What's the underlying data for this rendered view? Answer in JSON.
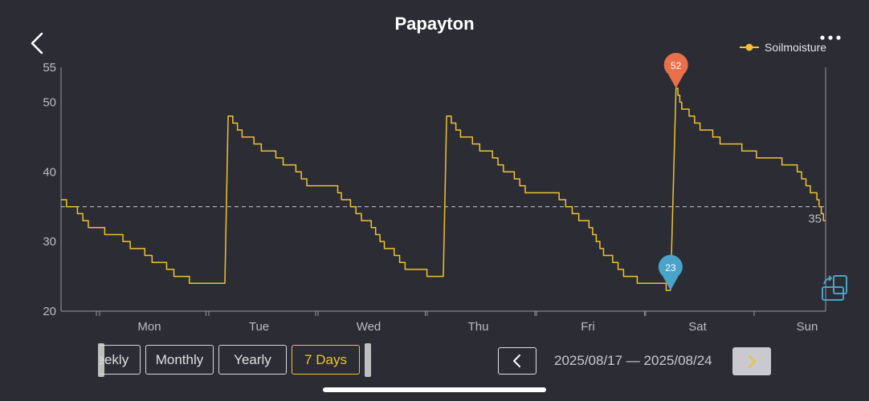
{
  "header": {
    "title": "Papayton",
    "back_icon": "chevron-left-icon",
    "more_icon": "more-dots-icon"
  },
  "legend": {
    "label": "Soilmoisture",
    "color": "#f1c232"
  },
  "chart_data": {
    "type": "line",
    "title": "",
    "xlabel": "",
    "ylabel": "",
    "ylim": [
      20,
      55
    ],
    "yticks": [
      20,
      30,
      40,
      50,
      55
    ],
    "xticks": [
      "Mon",
      "Tue",
      "Wed",
      "Thu",
      "Fri",
      "Sat",
      "Sun"
    ],
    "x_range_days": [
      0,
      7
    ],
    "threshold": 35,
    "threshold_label": "35",
    "grid": false,
    "series": [
      {
        "name": "Soilmoisture",
        "color": "#f1c232",
        "x": [
          0,
          0.1,
          0.3,
          0.5,
          0.7,
          0.9,
          1.1,
          1.25,
          1.5,
          1.53,
          1.7,
          1.9,
          2.1,
          2.3,
          2.5,
          2.6,
          2.8,
          3.0,
          3.2,
          3.5,
          3.53,
          3.7,
          3.9,
          4.1,
          4.3,
          4.5,
          4.8,
          5.0,
          5.2,
          5.35,
          5.5,
          5.58,
          5.63,
          5.7,
          5.9,
          6.1,
          6.5,
          6.7,
          6.9,
          7.0
        ],
        "y": [
          36,
          35,
          32,
          31,
          29,
          27,
          25,
          24,
          24,
          48,
          45,
          43,
          41,
          38,
          38,
          36,
          33,
          29,
          26,
          25,
          48,
          45,
          43,
          40,
          37,
          37,
          33,
          28,
          25,
          24,
          24,
          23,
          52,
          49,
          46,
          44,
          42,
          41,
          37,
          33
        ]
      }
    ],
    "annotations": [
      {
        "type": "max",
        "label": "52",
        "x": 5.63,
        "y": 52,
        "color": "#e8704a"
      },
      {
        "type": "min",
        "label": "23",
        "x": 5.58,
        "y": 23,
        "color": "#4aa3c8"
      }
    ]
  },
  "tabs": {
    "items": [
      {
        "label": "Weekly",
        "active": false
      },
      {
        "label": "Monthly",
        "active": false
      },
      {
        "label": "Yearly",
        "active": false
      },
      {
        "label": "7 Days",
        "active": true
      }
    ]
  },
  "date_nav": {
    "range": "2025/08/17 — 2025/08/24",
    "prev_icon": "chevron-left-icon",
    "next_icon": "chevron-right-icon"
  },
  "colors": {
    "background": "#2b2c34",
    "accent": "#f1c232",
    "axis": "#9a9aa0"
  }
}
